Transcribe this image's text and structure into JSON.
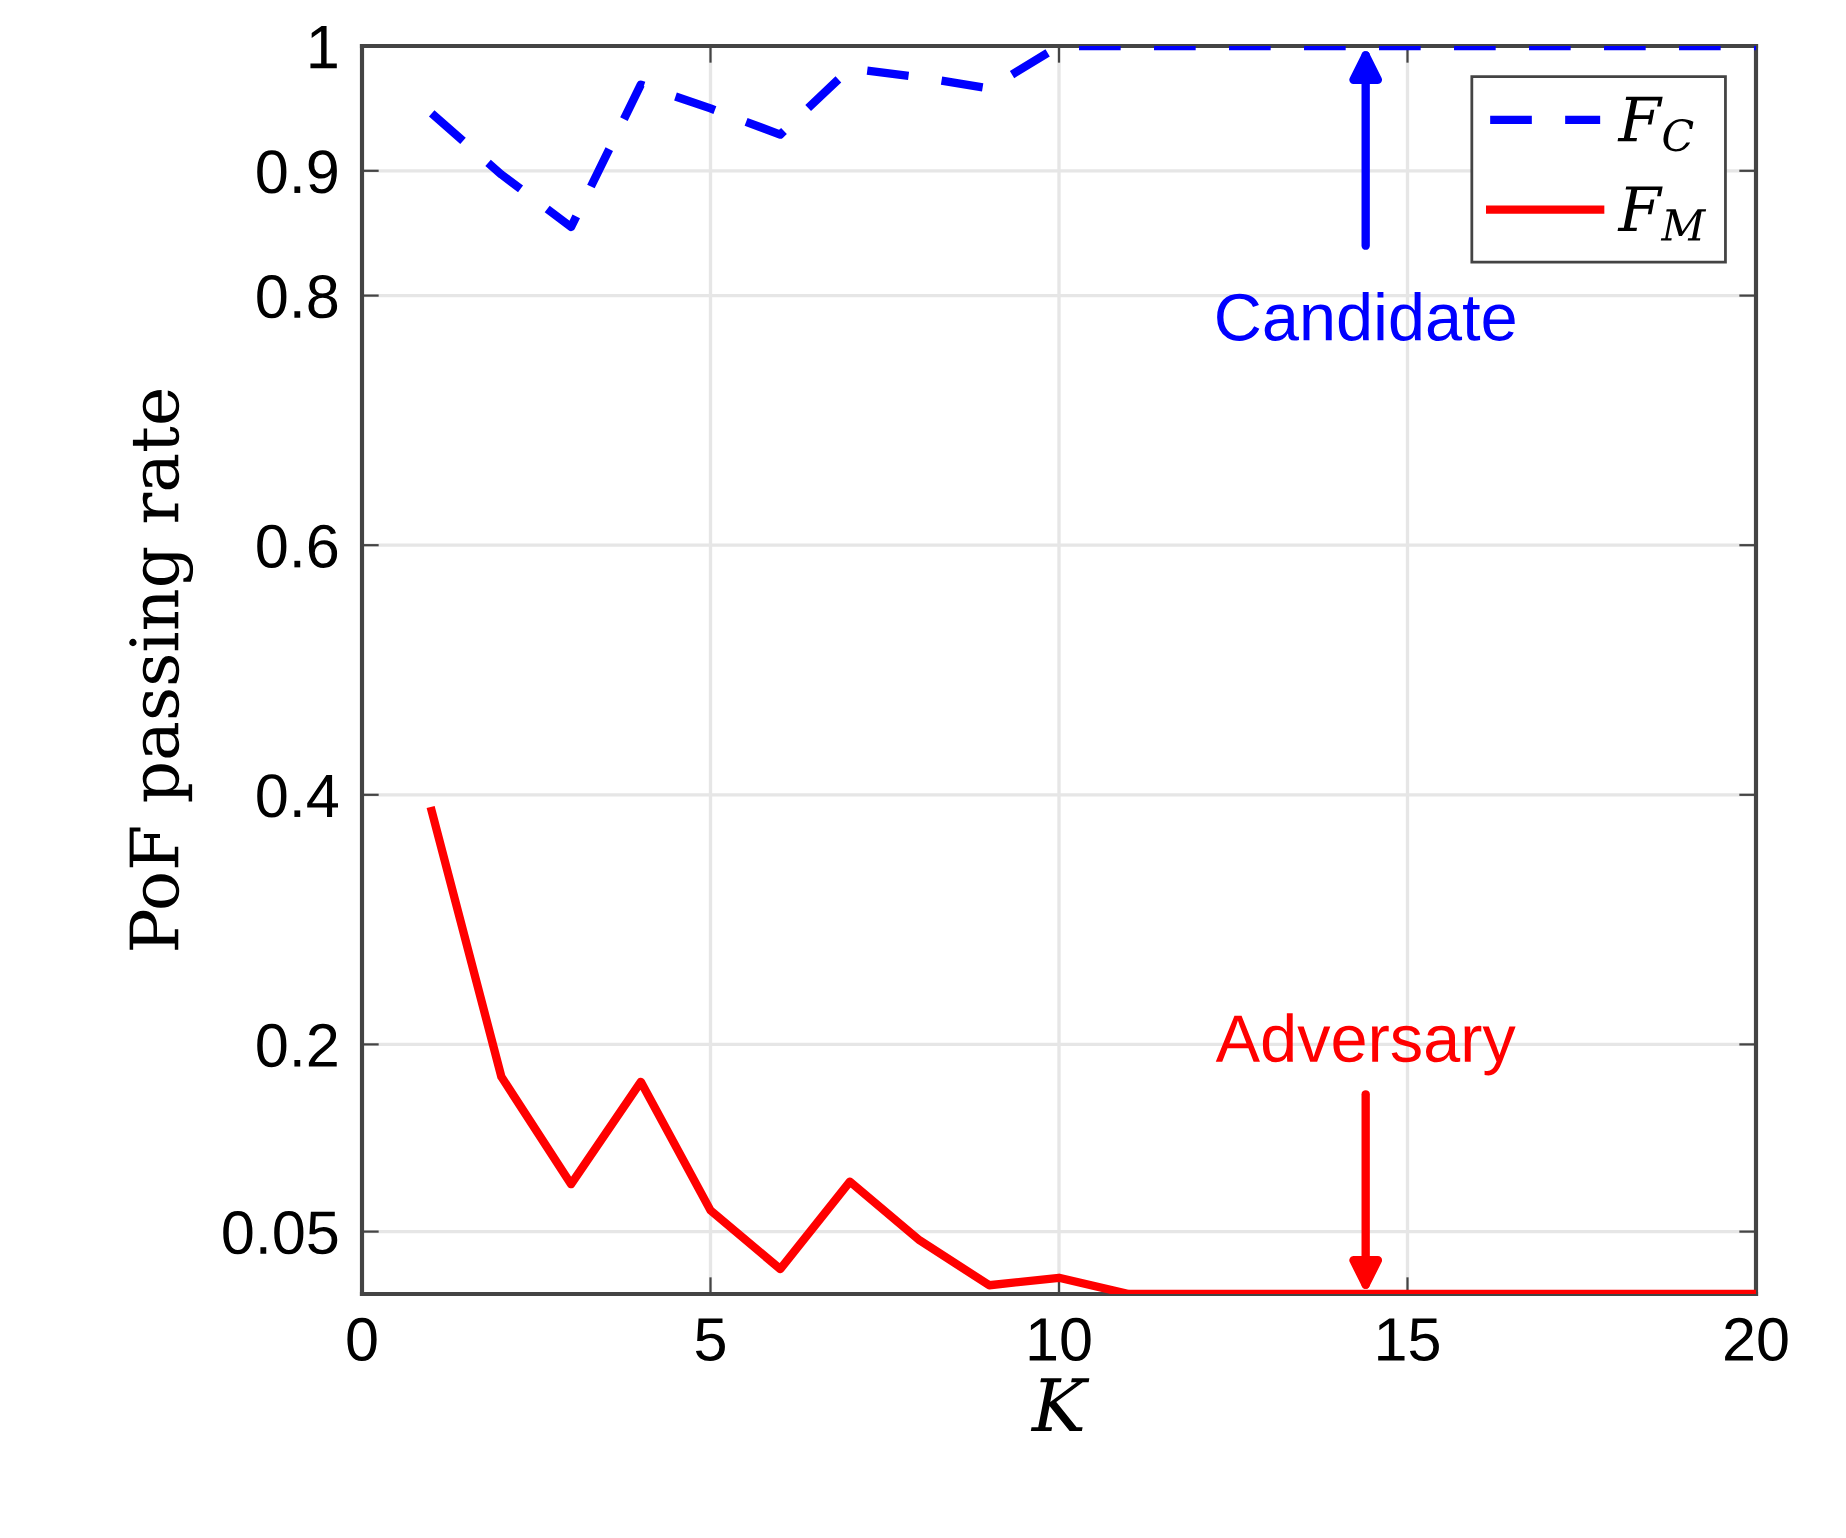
{
  "chart_data": {
    "type": "line",
    "xlabel": "K",
    "ylabel": "PoF passing rate",
    "x": [
      1,
      2,
      3,
      4,
      5,
      6,
      7,
      8,
      9,
      10,
      11,
      12,
      13,
      14,
      15,
      16,
      17,
      18,
      19,
      20
    ],
    "series": [
      {
        "name": "F$_{C}$",
        "color": "#0000ff",
        "line_style": "dashed",
        "values": [
          0.946,
          0.897,
          0.855,
          0.969,
          0.95,
          0.929,
          0.982,
          0.975,
          0.966,
          1,
          1,
          1,
          1,
          1,
          1,
          1,
          1,
          1,
          1,
          1
        ]
      },
      {
        "name": "F$_{M}$",
        "color": "#ff0000",
        "line_style": "solid",
        "values": [
          0.387,
          0.174,
          0.088,
          0.17,
          0.067,
          0.02,
          0.09,
          0.043,
          0.007,
          0.013,
          0,
          0,
          0,
          0,
          0,
          0,
          0,
          0,
          0,
          0
        ]
      }
    ],
    "xlim": [
      0,
      20
    ],
    "xticks": [
      0,
      5,
      10,
      15,
      20
    ],
    "ylim": [
      0,
      1
    ],
    "yticks": [
      0.05,
      0.2,
      0.4,
      0.6,
      0.8,
      0.9,
      1
    ],
    "grid": true,
    "legend": "top right",
    "marker": "none",
    "annotations": [
      {
        "text": "Candidate",
        "x": 14.4,
        "y": 1
      },
      {
        "text": "Adversary",
        "x": 14.4,
        "y": 0
      }
    ]
  }
}
